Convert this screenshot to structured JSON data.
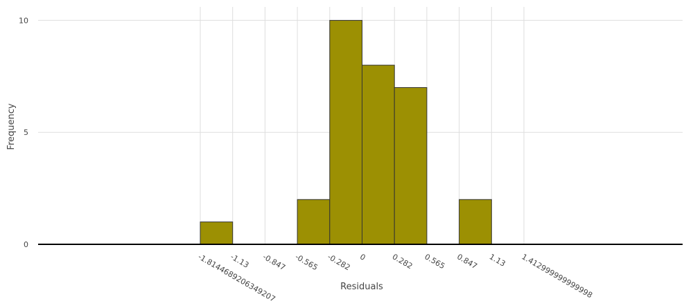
{
  "chart_data": {
    "type": "histogram",
    "x_label": "Residuals",
    "y_label": "Frequency",
    "bins": [
      -1.8144689206349207,
      -1.13,
      -0.847,
      -0.565,
      -0.282,
      0,
      0.282,
      0.565,
      0.847,
      1.13,
      1.412999999999998
    ],
    "values": [
      1,
      0,
      0,
      2,
      10,
      8,
      7,
      0,
      2,
      0
    ],
    "color": "#9c9003",
    "ylim": [
      0,
      10.6
    ],
    "yticks": [
      0,
      5,
      10
    ],
    "grid": true
  }
}
